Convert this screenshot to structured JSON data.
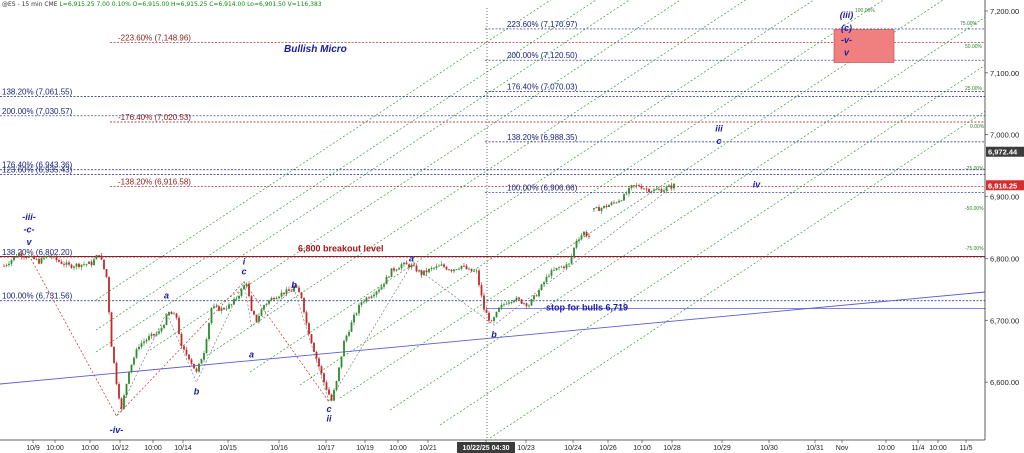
{
  "header": {
    "symbol": "@ES - 15 min",
    "exchange": "CME",
    "ohlc": "L=6,915.25  7.00  0.10%  O=6,915.00  H=6,915.25  C=6,914.00  Lo=6,901.50  V=116,383"
  },
  "colors": {
    "bull_candle": "#2e8b2e",
    "bear_candle": "#c62828",
    "fib_red": "#8b1a1a",
    "fib_blue": "#1a237e",
    "wave_label": "#1a1aa6",
    "trend_line": "#5b5bd6",
    "fan_green": "#3a9a3a",
    "target_box": "#f08080"
  },
  "chart_data": {
    "type": "candlestick",
    "y_axis": {
      "side": "right",
      "ylim": [
        6530,
        7215
      ],
      "ticks": [
        "7,200.00",
        "7,100.00",
        "7,000.00",
        "6,900.00",
        "6,800.00",
        "6,700.00",
        "6,600.00"
      ],
      "tick_values": [
        7200,
        7100,
        7000,
        6900,
        6800,
        6700,
        6600
      ]
    },
    "x_axis": {
      "labels": [
        "10/9",
        "10:00",
        "10:00",
        "10/12",
        "10:00",
        "10/14",
        "10/15",
        "10/16",
        "10/17",
        "10/19",
        "10:00",
        "10/21",
        "10/22/25 04:30",
        "10/23",
        "10/24",
        "10/26",
        "10:00",
        "10/28",
        "10/29",
        "10/30",
        "10/31",
        "Nov",
        "10:00",
        "11/4",
        "10:00",
        "11/5"
      ],
      "highlighted": "10/22/25 04:30"
    },
    "price_tags": [
      {
        "label": "6,972.44",
        "value": 6972.44,
        "style": "dark"
      },
      {
        "label": "6,918.25",
        "value": 6918.25,
        "style": "red"
      }
    ],
    "fib_levels_left": [
      {
        "label": "-223.60% (7,148.96)",
        "value": 7148.96,
        "color": "red"
      },
      {
        "label": "-176.40% (7,020.53)",
        "value": 7020.53,
        "color": "red"
      },
      {
        "label": "-138.20% (6,916.58)",
        "value": 6916.58,
        "color": "red"
      },
      {
        "label": "138.20% (7,061.55)",
        "value": 7061.55,
        "color": "blue"
      },
      {
        "label": "200.00% (7,030.57)",
        "value": 7030.57,
        "color": "blue"
      },
      {
        "label": "176.40% (6,943.36)",
        "value": 6943.36,
        "color": "blue"
      },
      {
        "label": "123.60% (6,935.43)",
        "value": 6935.43,
        "color": "blue"
      },
      {
        "label": "138.20% (6,802.20)",
        "value": 6802.2,
        "color": "blue"
      },
      {
        "label": "100.00% (6,731.56)",
        "value": 6731.56,
        "color": "blue"
      }
    ],
    "fib_levels_right": [
      {
        "label": "223.60% (7,170.97)",
        "value": 7170.97
      },
      {
        "label": "200.00% (7,120.50)",
        "value": 7120.5
      },
      {
        "label": "176.40% (7,070.03)",
        "value": 7070.03
      },
      {
        "label": "138.20% (6,988.35)",
        "value": 6988.35
      },
      {
        "label": "100.00% (6,906.66)",
        "value": 6906.66
      }
    ],
    "horizontal_levels": [
      {
        "label": "6,800 breakout level",
        "value": 6803
      },
      {
        "label": "stop for bulls 6,719",
        "value": 6719
      }
    ],
    "fan_labels": [
      "100.00%",
      "75.00%",
      "50.00%",
      "25.00%",
      "0.00%",
      "-25.00%",
      "-50.00%",
      "-75.00%"
    ],
    "annotations": {
      "title": "Bullish Micro",
      "waves": [
        {
          "text": "-iii-",
          "t": 10,
          "p": 6862
        },
        {
          "text": "-c-",
          "t": 10,
          "p": 6842
        },
        {
          "text": "v",
          "t": 10,
          "p": 6822
        },
        {
          "text": "-iv-",
          "t": 45,
          "p": 6518
        },
        {
          "text": "a",
          "t": 65,
          "p": 6735
        },
        {
          "text": "b",
          "t": 77,
          "p": 6580
        },
        {
          "text": "i",
          "t": 96,
          "p": 6790
        },
        {
          "text": "c",
          "t": 96,
          "p": 6774
        },
        {
          "text": "a",
          "t": 99,
          "p": 6640
        },
        {
          "text": "b",
          "t": 116,
          "p": 6752
        },
        {
          "text": "c",
          "t": 130,
          "p": 6552
        },
        {
          "text": "ii",
          "t": 130,
          "p": 6536
        },
        {
          "text": "a",
          "t": 163,
          "p": 6795
        },
        {
          "text": "b",
          "t": 196,
          "p": 6672
        },
        {
          "text": "iii",
          "t": 286,
          "p": 7005
        },
        {
          "text": "c",
          "t": 286,
          "p": 6985
        },
        {
          "text": "iv",
          "t": 301,
          "p": 6915
        },
        {
          "text": "(iii)",
          "t": 337,
          "p": 7189
        },
        {
          "text": "(c)",
          "t": 337,
          "p": 7168
        },
        {
          "text": "-v-",
          "t": 337,
          "p": 7148
        },
        {
          "text": "v",
          "t": 337,
          "p": 7128
        }
      ]
    },
    "candles_note": "15-minute E-mini S&P 500 futures, 10/9 to 10/28, approx. 6,550 to 6,925",
    "price_path": [
      [
        0,
        6788
      ],
      [
        6,
        6808
      ],
      [
        10,
        6802
      ],
      [
        14,
        6795
      ],
      [
        18,
        6805
      ],
      [
        22,
        6795
      ],
      [
        26,
        6788
      ],
      [
        30,
        6790
      ],
      [
        35,
        6792
      ],
      [
        38,
        6808
      ],
      [
        41,
        6770
      ],
      [
        43,
        6660
      ],
      [
        45,
        6600
      ],
      [
        47,
        6555
      ],
      [
        50,
        6620
      ],
      [
        54,
        6660
      ],
      [
        58,
        6672
      ],
      [
        62,
        6680
      ],
      [
        66,
        6712
      ],
      [
        69,
        6705
      ],
      [
        71,
        6655
      ],
      [
        74,
        6640
      ],
      [
        77,
        6615
      ],
      [
        80,
        6650
      ],
      [
        83,
        6720
      ],
      [
        87,
        6718
      ],
      [
        91,
        6725
      ],
      [
        95,
        6748
      ],
      [
        97,
        6762
      ],
      [
        99,
        6712
      ],
      [
        101,
        6700
      ],
      [
        104,
        6725
      ],
      [
        108,
        6738
      ],
      [
        112,
        6745
      ],
      [
        115,
        6748
      ],
      [
        116,
        6755
      ],
      [
        119,
        6738
      ],
      [
        121,
        6695
      ],
      [
        124,
        6652
      ],
      [
        128,
        6600
      ],
      [
        131,
        6570
      ],
      [
        133,
        6600
      ],
      [
        136,
        6665
      ],
      [
        140,
        6705
      ],
      [
        143,
        6730
      ],
      [
        147,
        6742
      ],
      [
        151,
        6755
      ],
      [
        155,
        6780
      ],
      [
        159,
        6790
      ],
      [
        163,
        6788
      ],
      [
        167,
        6775
      ],
      [
        171,
        6783
      ],
      [
        175,
        6788
      ],
      [
        179,
        6782
      ],
      [
        183,
        6788
      ],
      [
        186,
        6780
      ],
      [
        189,
        6778
      ],
      [
        192,
        6718
      ],
      [
        195,
        6695
      ],
      [
        198,
        6718
      ],
      [
        201,
        6730
      ],
      [
        204,
        6735
      ],
      [
        207,
        6730
      ],
      [
        210,
        6725
      ],
      [
        214,
        6748
      ],
      [
        218,
        6775
      ],
      [
        222,
        6785
      ],
      [
        226,
        6790
      ],
      [
        229,
        6830
      ],
      [
        232,
        6842
      ],
      [
        234,
        6835
      ],
      [
        236,
        6878
      ],
      [
        240,
        6883
      ],
      [
        244,
        6890
      ],
      [
        248,
        6900
      ],
      [
        251,
        6915
      ],
      [
        254,
        6918
      ],
      [
        257,
        6912
      ],
      [
        260,
        6910
      ],
      [
        264,
        6912
      ],
      [
        268,
        6918
      ]
    ],
    "path_gap_after_t": 234
  }
}
